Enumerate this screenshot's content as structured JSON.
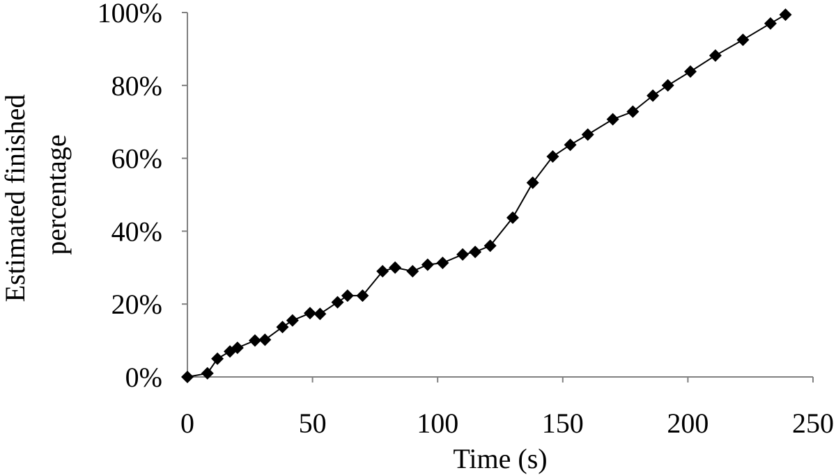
{
  "chart_data": {
    "type": "line",
    "xlabel": "Time (s)",
    "ylabel_lines": [
      "Estimated finished",
      "percentage"
    ],
    "xlim": [
      0,
      250
    ],
    "ylim": [
      0,
      100
    ],
    "x_ticks": [
      0,
      50,
      100,
      150,
      200,
      250
    ],
    "x_tick_labels": [
      "0",
      "50",
      "100",
      "150",
      "200",
      "250"
    ],
    "y_ticks": [
      0,
      20,
      40,
      60,
      80,
      100
    ],
    "y_tick_labels": [
      "0%",
      "20%",
      "40%",
      "60%",
      "80%",
      "100%"
    ],
    "grid": false,
    "legend": "none",
    "marker": "diamond",
    "colors": {
      "line": "#000000",
      "marker": "#000000",
      "axis": "#808080"
    },
    "series": [
      {
        "x": [
          0,
          8,
          12,
          17,
          20,
          27,
          31,
          38,
          42,
          49,
          53,
          60,
          64,
          70,
          78,
          83,
          90,
          96,
          102,
          110,
          115,
          121,
          130,
          138,
          146,
          153,
          160,
          170,
          178,
          186,
          192,
          201,
          211,
          222,
          233,
          239
        ],
        "y": [
          0,
          1,
          5,
          7,
          8,
          10,
          10.2,
          13.7,
          15.5,
          17.5,
          17.3,
          20.5,
          22.3,
          22.3,
          29,
          30,
          29,
          30.8,
          31.3,
          33.6,
          34.3,
          36,
          43.7,
          53.3,
          60.5,
          63.7,
          66.5,
          70.7,
          72.8,
          77.2,
          80,
          83.8,
          88.2,
          92.5,
          97,
          99.4
        ]
      }
    ]
  }
}
